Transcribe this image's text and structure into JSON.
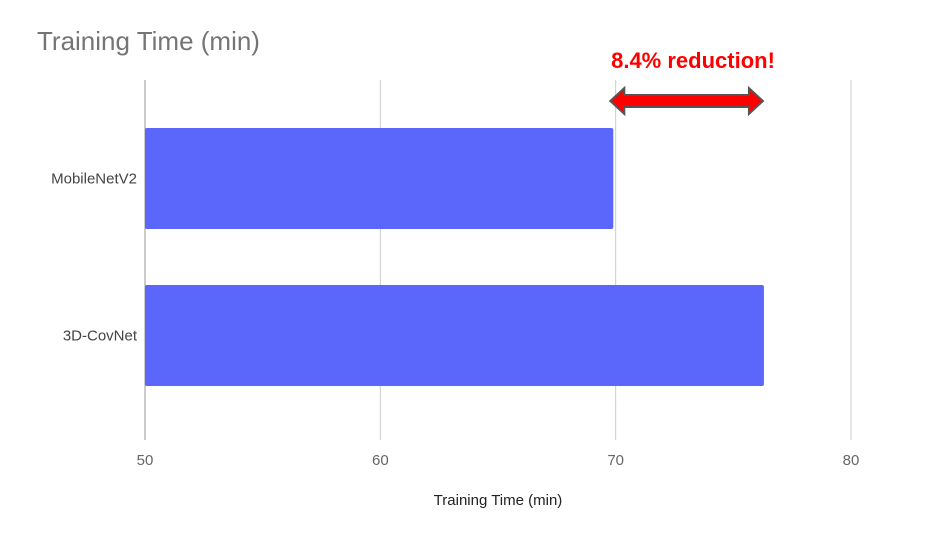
{
  "chart_data": {
    "type": "bar",
    "orientation": "horizontal",
    "title": "Training Time (min)",
    "xlabel": "Training Time (min)",
    "ylabel": "",
    "categories": [
      "MobileNetV2",
      "3D-CovNet"
    ],
    "values": [
      69.9,
      76.3
    ],
    "xlim": [
      50,
      80
    ],
    "xticks": [
      "50",
      "60",
      "70",
      "80"
    ],
    "grid": true,
    "bar_color": "#5b67fb",
    "annotation": {
      "text": "8.4% reduction!",
      "color": "#ff0000",
      "arrow": "double-headed",
      "from": 69.9,
      "to": 76.3
    }
  }
}
